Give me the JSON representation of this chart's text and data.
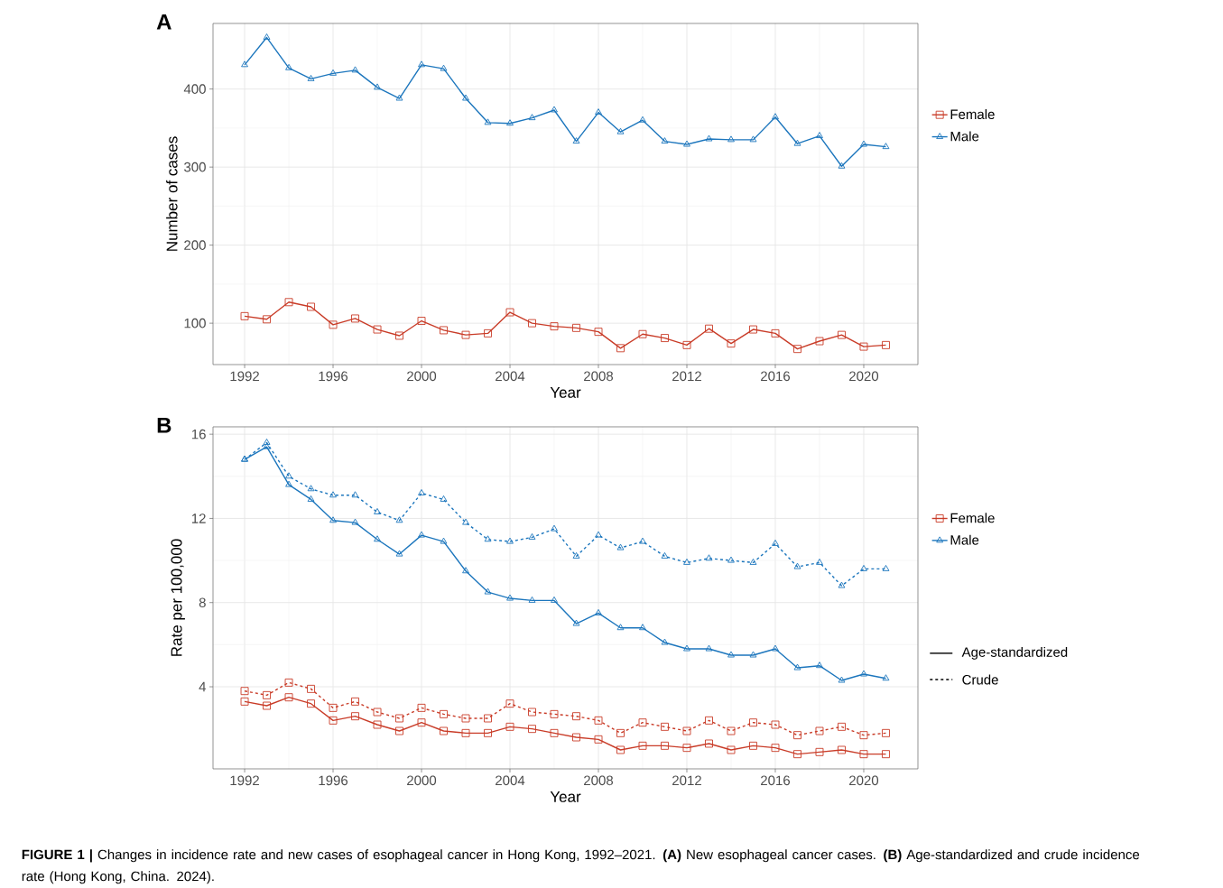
{
  "chart_data": [
    {
      "type": "line",
      "title": "A",
      "xlabel": "Year",
      "ylabel": "Number of cases",
      "x": [
        1992,
        1993,
        1994,
        1995,
        1996,
        1997,
        1998,
        1999,
        2000,
        2001,
        2002,
        2003,
        2004,
        2005,
        2006,
        2007,
        2008,
        2009,
        2010,
        2011,
        2012,
        2013,
        2014,
        2015,
        2016,
        2017,
        2018,
        2019,
        2020,
        2021
      ],
      "series": [
        {
          "name": "Female",
          "color": "#c93c28",
          "marker": "square",
          "values": [
            109,
            105,
            127,
            121,
            98,
            106,
            92,
            84,
            103,
            91,
            85,
            87,
            114,
            100,
            96,
            94,
            89,
            68,
            86,
            81,
            72,
            93,
            74,
            92,
            87,
            67,
            77,
            85,
            70,
            72
          ]
        },
        {
          "name": "Male",
          "color": "#1c76bd",
          "marker": "triangle",
          "values": [
            431,
            466,
            427,
            413,
            420,
            424,
            402,
            388,
            431,
            426,
            388,
            357,
            356,
            363,
            373,
            333,
            370,
            345,
            360,
            333,
            329,
            336,
            335,
            335,
            364,
            330,
            340,
            301,
            329,
            326
          ]
        }
      ],
      "xlim": [
        1990.57,
        2022.45
      ],
      "ylim": [
        47,
        484
      ],
      "xticks": [
        1992,
        1996,
        2000,
        2004,
        2008,
        2012,
        2016,
        2020
      ],
      "yticks": [
        100,
        200,
        300,
        400
      ],
      "grid": true,
      "legend": "right",
      "line_style": "solid"
    },
    {
      "type": "line",
      "title": "B",
      "xlabel": "Year",
      "ylabel": "Rate per 100,000",
      "x": [
        1992,
        1993,
        1994,
        1995,
        1996,
        1997,
        1998,
        1999,
        2000,
        2001,
        2002,
        2003,
        2004,
        2005,
        2006,
        2007,
        2008,
        2009,
        2010,
        2011,
        2012,
        2013,
        2014,
        2015,
        2016,
        2017,
        2018,
        2019,
        2020,
        2021
      ],
      "series": [
        {
          "name": "Female",
          "color": "#c93c28",
          "marker": "square",
          "line_style": "solid",
          "values": [
            3.3,
            3.1,
            3.5,
            3.2,
            2.4,
            2.6,
            2.2,
            1.9,
            2.3,
            1.9,
            1.8,
            1.8,
            2.1,
            2.0,
            1.8,
            1.6,
            1.5,
            1.0,
            1.2,
            1.2,
            1.1,
            1.3,
            1.0,
            1.2,
            1.1,
            0.8,
            0.9,
            1.0,
            0.8,
            0.8
          ]
        },
        {
          "name": "Male",
          "color": "#1c76bd",
          "marker": "triangle",
          "line_style": "solid",
          "values": [
            14.8,
            15.4,
            13.6,
            12.9,
            11.9,
            11.8,
            11.0,
            10.3,
            11.2,
            10.9,
            9.5,
            8.5,
            8.2,
            8.1,
            8.1,
            7.0,
            7.5,
            6.8,
            6.8,
            6.1,
            5.8,
            5.8,
            5.5,
            5.5,
            5.8,
            4.9,
            5.0,
            4.3,
            4.6,
            4.4
          ]
        },
        {
          "color": "#c93c28",
          "marker": "square",
          "line_style": "dashed",
          "values": [
            3.8,
            3.6,
            4.2,
            3.9,
            3.0,
            3.3,
            2.8,
            2.5,
            3.0,
            2.7,
            2.5,
            2.5,
            3.2,
            2.8,
            2.7,
            2.6,
            2.4,
            1.8,
            2.3,
            2.1,
            1.9,
            2.4,
            1.9,
            2.3,
            2.2,
            1.7,
            1.9,
            2.1,
            1.7,
            1.8
          ]
        },
        {
          "color": "#1c76bd",
          "marker": "triangle",
          "line_style": "dashed",
          "values": [
            14.8,
            15.6,
            14.0,
            13.4,
            13.1,
            13.1,
            12.3,
            11.9,
            13.2,
            12.9,
            11.8,
            11.0,
            10.9,
            11.1,
            11.5,
            10.2,
            11.2,
            10.6,
            10.9,
            10.2,
            9.9,
            10.1,
            10.0,
            9.9,
            10.8,
            9.7,
            9.9,
            8.8,
            9.6,
            9.6
          ]
        }
      ],
      "xlim": [
        1990.57,
        2022.45
      ],
      "ylim": [
        0.1,
        16.35
      ],
      "xticks": [
        1992,
        1996,
        2000,
        2004,
        2008,
        2012,
        2016,
        2020
      ],
      "yticks": [
        4,
        8,
        12,
        16
      ],
      "grid": true,
      "legend": "right",
      "annotations": [
        "Age-standardized",
        "Crude",
        "**FIGURE 1 |** Changes in incidence rate and new cases of esophageal cancer in Hong Kong, 1992–2021. **(A)** New esophageal cancer cases. **(B)** Age-standardized and crude incidence rate (Hong Kong, China. 2024)."
      ]
    }
  ]
}
